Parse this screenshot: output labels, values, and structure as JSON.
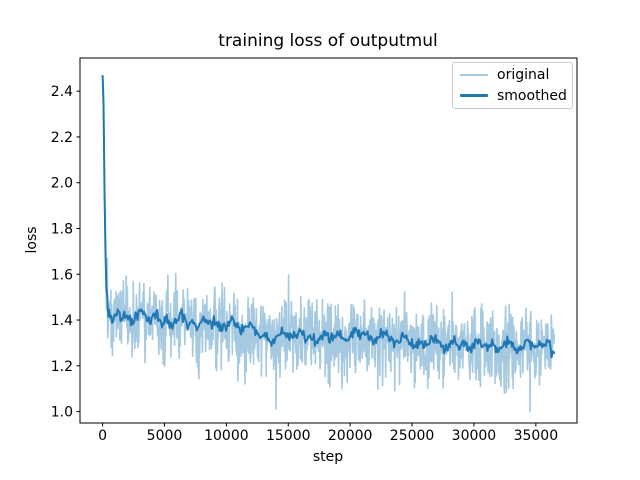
{
  "figure": {
    "background": "#ffffff",
    "text_color": "#000000",
    "spine_color": "#000000"
  },
  "legend": {
    "entries": [
      {
        "label": "original",
        "color": "#1f77b4",
        "opacity": 0.4
      },
      {
        "label": "smoothed",
        "color": "#1f77b4",
        "opacity": 1.0
      }
    ]
  },
  "chart_data": {
    "type": "line",
    "title": "training loss of outputmul",
    "xlabel": "step",
    "ylabel": "loss",
    "xlim": [
      -1825,
      38325
    ],
    "ylim": [
      0.95,
      2.545
    ],
    "xticks": [
      0,
      5000,
      10000,
      15000,
      20000,
      25000,
      30000,
      35000
    ],
    "yticks": [
      1.0,
      1.2,
      1.4,
      1.6,
      1.8,
      2.0,
      2.2,
      2.4
    ],
    "grid": false,
    "legend_position": "upper right",
    "x_max_step": 36500,
    "series": [
      {
        "name": "original",
        "color": "#1f77b4",
        "opacity": 0.4,
        "linewidth": 1.6,
        "points": 1150,
        "noise_std": 0.085,
        "seed": 1337
      },
      {
        "name": "smoothed",
        "color": "#1f77b4",
        "opacity": 1.0,
        "linewidth": 2.0,
        "points": 480,
        "noise_std": 0.012,
        "seed": 77
      }
    ],
    "trend_anchors": [
      [
        0,
        2.47
      ],
      [
        60,
        2.42
      ],
      [
        120,
        2.12
      ],
      [
        200,
        1.78
      ],
      [
        300,
        1.56
      ],
      [
        450,
        1.46
      ],
      [
        600,
        1.42
      ],
      [
        800,
        1.4
      ],
      [
        1000,
        1.42
      ],
      [
        1300,
        1.44
      ],
      [
        1600,
        1.41
      ],
      [
        2000,
        1.43
      ],
      [
        2400,
        1.39
      ],
      [
        2800,
        1.42
      ],
      [
        3200,
        1.44
      ],
      [
        3600,
        1.4
      ],
      [
        4000,
        1.41
      ],
      [
        4400,
        1.43
      ],
      [
        4800,
        1.38
      ],
      [
        5200,
        1.4
      ],
      [
        5600,
        1.37
      ],
      [
        6000,
        1.4
      ],
      [
        6400,
        1.42
      ],
      [
        6800,
        1.38
      ],
      [
        7200,
        1.4
      ],
      [
        7600,
        1.37
      ],
      [
        8000,
        1.39
      ],
      [
        8400,
        1.41
      ],
      [
        8800,
        1.37
      ],
      [
        9200,
        1.38
      ],
      [
        9600,
        1.36
      ],
      [
        10000,
        1.38
      ],
      [
        10400,
        1.4
      ],
      [
        10800,
        1.37
      ],
      [
        11200,
        1.35
      ],
      [
        11600,
        1.37
      ],
      [
        12000,
        1.38
      ],
      [
        12400,
        1.35
      ],
      [
        12800,
        1.33
      ],
      [
        13200,
        1.34
      ],
      [
        13600,
        1.3
      ],
      [
        14000,
        1.32
      ],
      [
        14400,
        1.35
      ],
      [
        14800,
        1.33
      ],
      [
        15200,
        1.32
      ],
      [
        15600,
        1.33
      ],
      [
        16000,
        1.35
      ],
      [
        16400,
        1.32
      ],
      [
        16800,
        1.33
      ],
      [
        17200,
        1.3
      ],
      [
        17600,
        1.32
      ],
      [
        18000,
        1.33
      ],
      [
        18400,
        1.31
      ],
      [
        18800,
        1.33
      ],
      [
        19200,
        1.34
      ],
      [
        19600,
        1.31
      ],
      [
        20000,
        1.33
      ],
      [
        20400,
        1.35
      ],
      [
        20800,
        1.33
      ],
      [
        21200,
        1.34
      ],
      [
        21600,
        1.32
      ],
      [
        22000,
        1.31
      ],
      [
        22400,
        1.33
      ],
      [
        22800,
        1.34
      ],
      [
        23200,
        1.32
      ],
      [
        23600,
        1.3
      ],
      [
        24000,
        1.32
      ],
      [
        24400,
        1.33
      ],
      [
        24800,
        1.31
      ],
      [
        25200,
        1.29
      ],
      [
        25600,
        1.31
      ],
      [
        26000,
        1.28
      ],
      [
        26400,
        1.3
      ],
      [
        26800,
        1.32
      ],
      [
        27200,
        1.3
      ],
      [
        27600,
        1.28
      ],
      [
        28000,
        1.29
      ],
      [
        28400,
        1.31
      ],
      [
        28800,
        1.28
      ],
      [
        29200,
        1.3
      ],
      [
        29600,
        1.27
      ],
      [
        30000,
        1.29
      ],
      [
        30400,
        1.31
      ],
      [
        30800,
        1.29
      ],
      [
        31200,
        1.28
      ],
      [
        31600,
        1.3
      ],
      [
        32000,
        1.26
      ],
      [
        32400,
        1.28
      ],
      [
        32800,
        1.3
      ],
      [
        33200,
        1.28
      ],
      [
        33600,
        1.27
      ],
      [
        34000,
        1.29
      ],
      [
        34400,
        1.31
      ],
      [
        34800,
        1.28
      ],
      [
        35200,
        1.3
      ],
      [
        35600,
        1.29
      ],
      [
        36000,
        1.31
      ],
      [
        36250,
        1.27
      ],
      [
        36500,
        1.25
      ]
    ]
  }
}
